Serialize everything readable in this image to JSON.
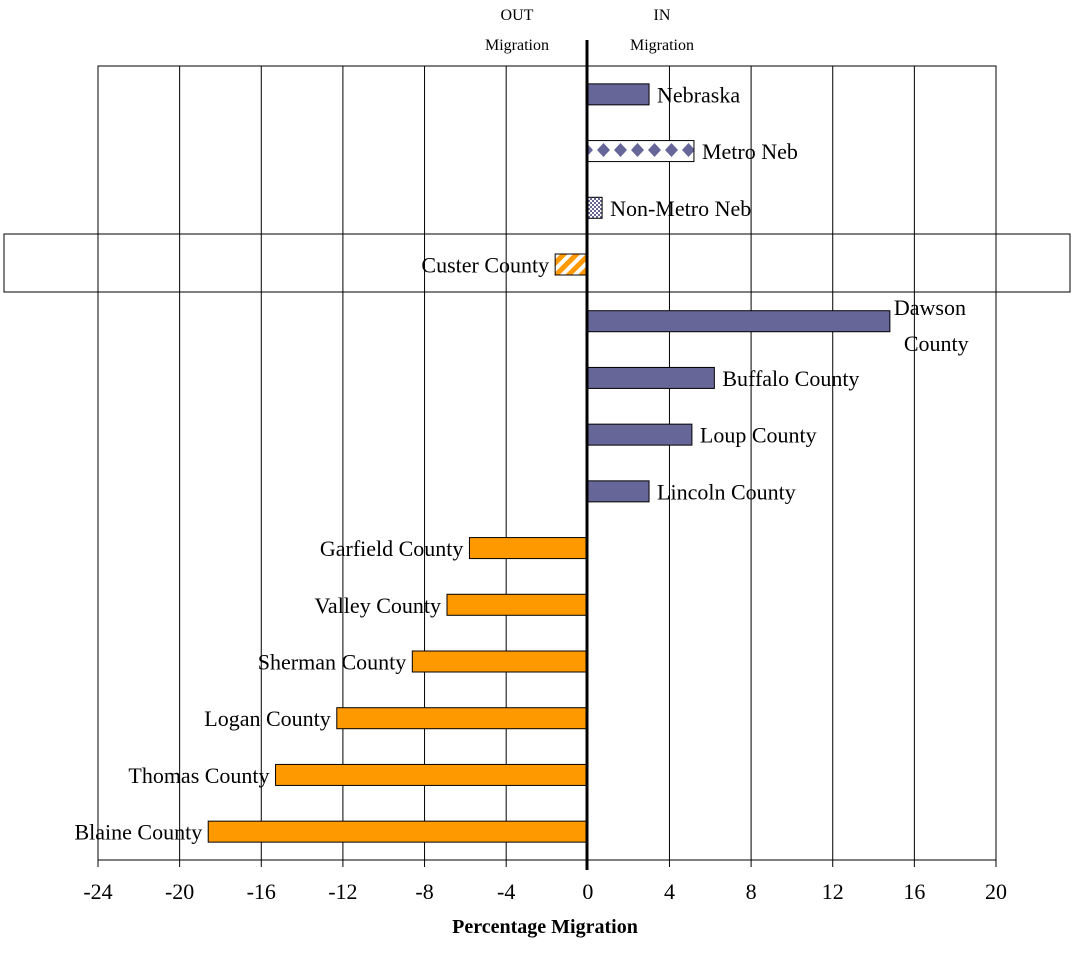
{
  "colors": {
    "in_fill": "#666699",
    "out_fill": "#FF9900",
    "grid": "#000000",
    "axis": "#000000"
  },
  "headers": {
    "out_line1": "OUT",
    "out_line2": "Migration",
    "in_line1": "IN",
    "in_line2": "Migration"
  },
  "chart_data": {
    "type": "bar",
    "orientation": "horizontal",
    "xlabel": "Percentage Migration",
    "xlim": [
      -24,
      20
    ],
    "xticks": [
      -24,
      -20,
      -16,
      -12,
      -8,
      -4,
      0,
      4,
      8,
      12,
      16,
      20
    ],
    "grid": true,
    "categories": [
      "Nebraska",
      "Metro Neb",
      "Non-Metro Neb",
      "Custer County",
      "Dawson County",
      "Buffalo County",
      "Loup County",
      "Lincoln County",
      "Garfield County",
      "Valley County",
      "Sherman County",
      "Logan County",
      "Thomas County",
      "Blaine County"
    ],
    "values": [
      3.0,
      5.2,
      0.7,
      -1.6,
      14.8,
      6.2,
      5.1,
      3.0,
      -5.8,
      -6.9,
      -8.6,
      -12.3,
      -15.3,
      -18.6
    ],
    "highlighted": "Custer County"
  }
}
